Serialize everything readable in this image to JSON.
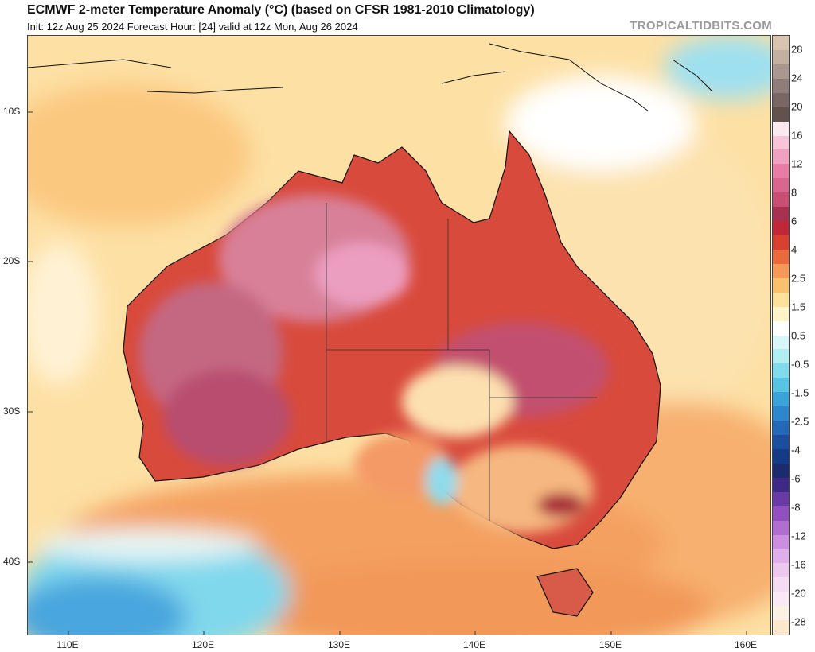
{
  "header": {
    "title": "ECMWF 2-meter Temperature Anomaly (°C) (based on CFSR 1981-2010 Climatology)",
    "subtitle": "Init: 12z Aug 25 2024   Forecast Hour: [24]   valid at 12z Mon, Aug 26 2024",
    "site": "TROPICALTIDBITS.COM"
  },
  "map": {
    "region": "Australia",
    "lat_labels": [
      "10S",
      "20S",
      "30S",
      "40S"
    ],
    "lon_labels": [
      "110E",
      "120E",
      "130E",
      "140E",
      "150E",
      "160E"
    ]
  },
  "colorbar": {
    "labels": [
      "28",
      "24",
      "20",
      "16",
      "12",
      "8",
      "6",
      "4",
      "2.5",
      "1.5",
      "0.5",
      "-0.5",
      "-1.5",
      "-2.5",
      "-4",
      "-6",
      "-8",
      "-12",
      "-16",
      "-20",
      "-28"
    ],
    "colors": [
      "#d9c4b0",
      "#c4b0a0",
      "#aa9890",
      "#907c78",
      "#7a6664",
      "#62524e",
      "#fce8ef",
      "#f8c4d8",
      "#f0a0c0",
      "#e87ca6",
      "#d8668e",
      "#c84e74",
      "#a83050",
      "#c02838",
      "#d84030",
      "#ea6a3e",
      "#f59858",
      "#f9c070",
      "#fde09a",
      "#fff4c8",
      "#ffffff",
      "#d8f6f8",
      "#b0eef4",
      "#80dcec",
      "#58c4e4",
      "#3aa4da",
      "#2e86cc",
      "#2468b8",
      "#1c4ea0",
      "#143a88",
      "#1c2a70",
      "#3e2a86",
      "#6a3aa6",
      "#9050c0",
      "#b06ed2",
      "#cc8ee0",
      "#e0aee8",
      "#ecc8ee",
      "#f4dcf2",
      "#fae8f4",
      "#fcf0e4",
      "#fce6cc"
    ]
  }
}
